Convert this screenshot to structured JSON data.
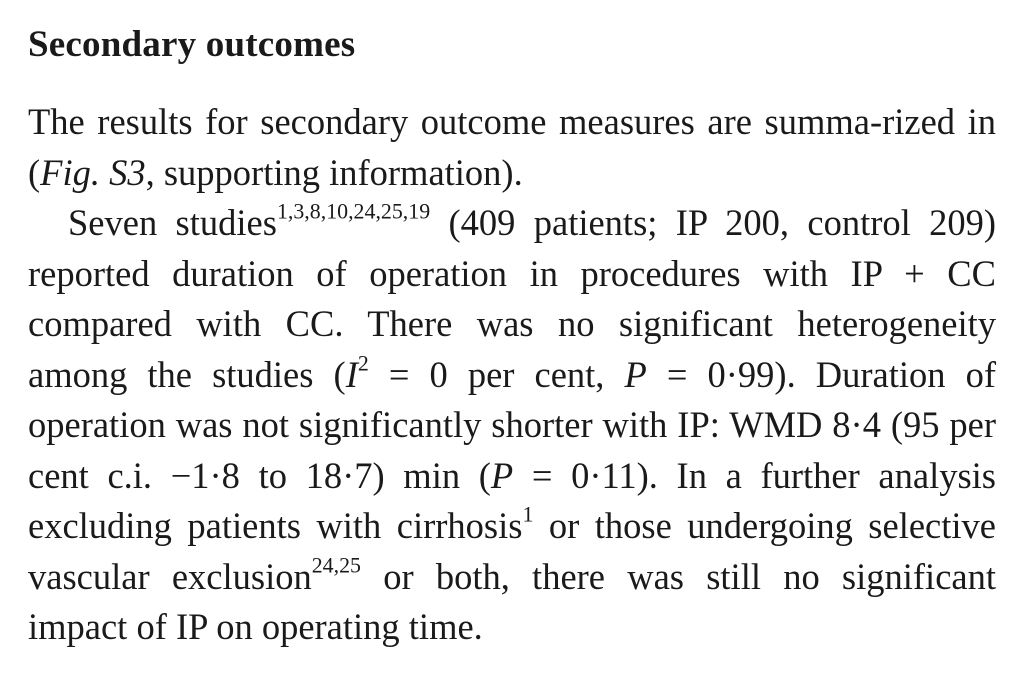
{
  "section": {
    "heading": "Secondary outcomes"
  },
  "paragraph1": {
    "text_before": "The results for secondary outcome measures are summa-rized in (",
    "fig_ref": "Fig. S3",
    "text_after": ", supporting information)."
  },
  "paragraph2": {
    "p1": "Seven studies",
    "ref1": "1,3,8,10,24,25,19",
    "p2": " (409 patients; IP 200, control 209) reported duration of operation in procedures with IP + CC compared with CC. There was no significant heterogeneity among the studies (",
    "i_symbol": "I",
    "i_exp": "2",
    "p3": " = 0 per cent, ",
    "p_symbol1": "P",
    "p4": " = 0·99). Duration of operation was not significantly shorter with IP: WMD 8·4 (95 per cent c.i. −1·8 to 18·7) min (",
    "p_symbol2": "P",
    "p5": " = 0·11). In a further analysis excluding patients with cirrhosis",
    "ref2": "1",
    "p6": " or those undergoing selective vascular exclusion",
    "ref3": "24,25",
    "p7": " or both, there was still no significant impact of IP on operating time."
  }
}
